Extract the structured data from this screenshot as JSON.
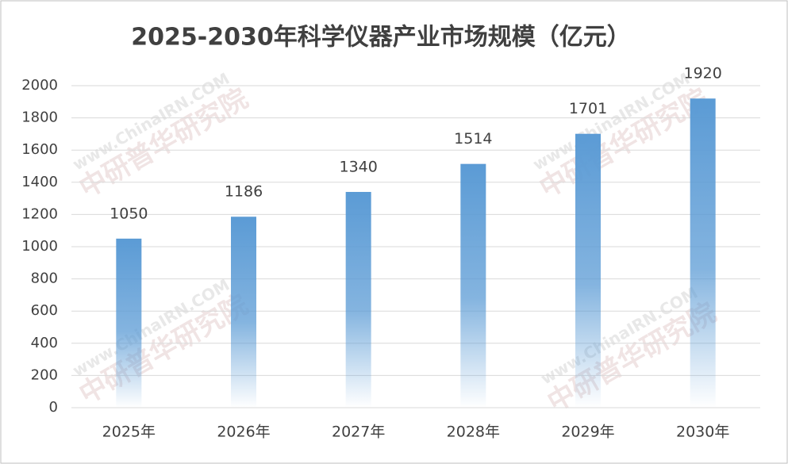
{
  "chart_data": {
    "type": "bar",
    "title": "2025-2030年科学仪器产业市场规模（亿元）",
    "categories": [
      "2025年",
      "2026年",
      "2027年",
      "2028年",
      "2029年",
      "2030年"
    ],
    "values": [
      1050,
      1186,
      1340,
      1514,
      1701,
      1920
    ],
    "color": "#5b9bd5",
    "ylim": [
      0,
      2000
    ],
    "yticks": [
      0,
      200,
      400,
      600,
      800,
      1000,
      1200,
      1400,
      1600,
      1800,
      2000
    ],
    "grid": true,
    "watermark": [
      "www.ChinaIRN.COM",
      "中研普华研究院"
    ]
  }
}
